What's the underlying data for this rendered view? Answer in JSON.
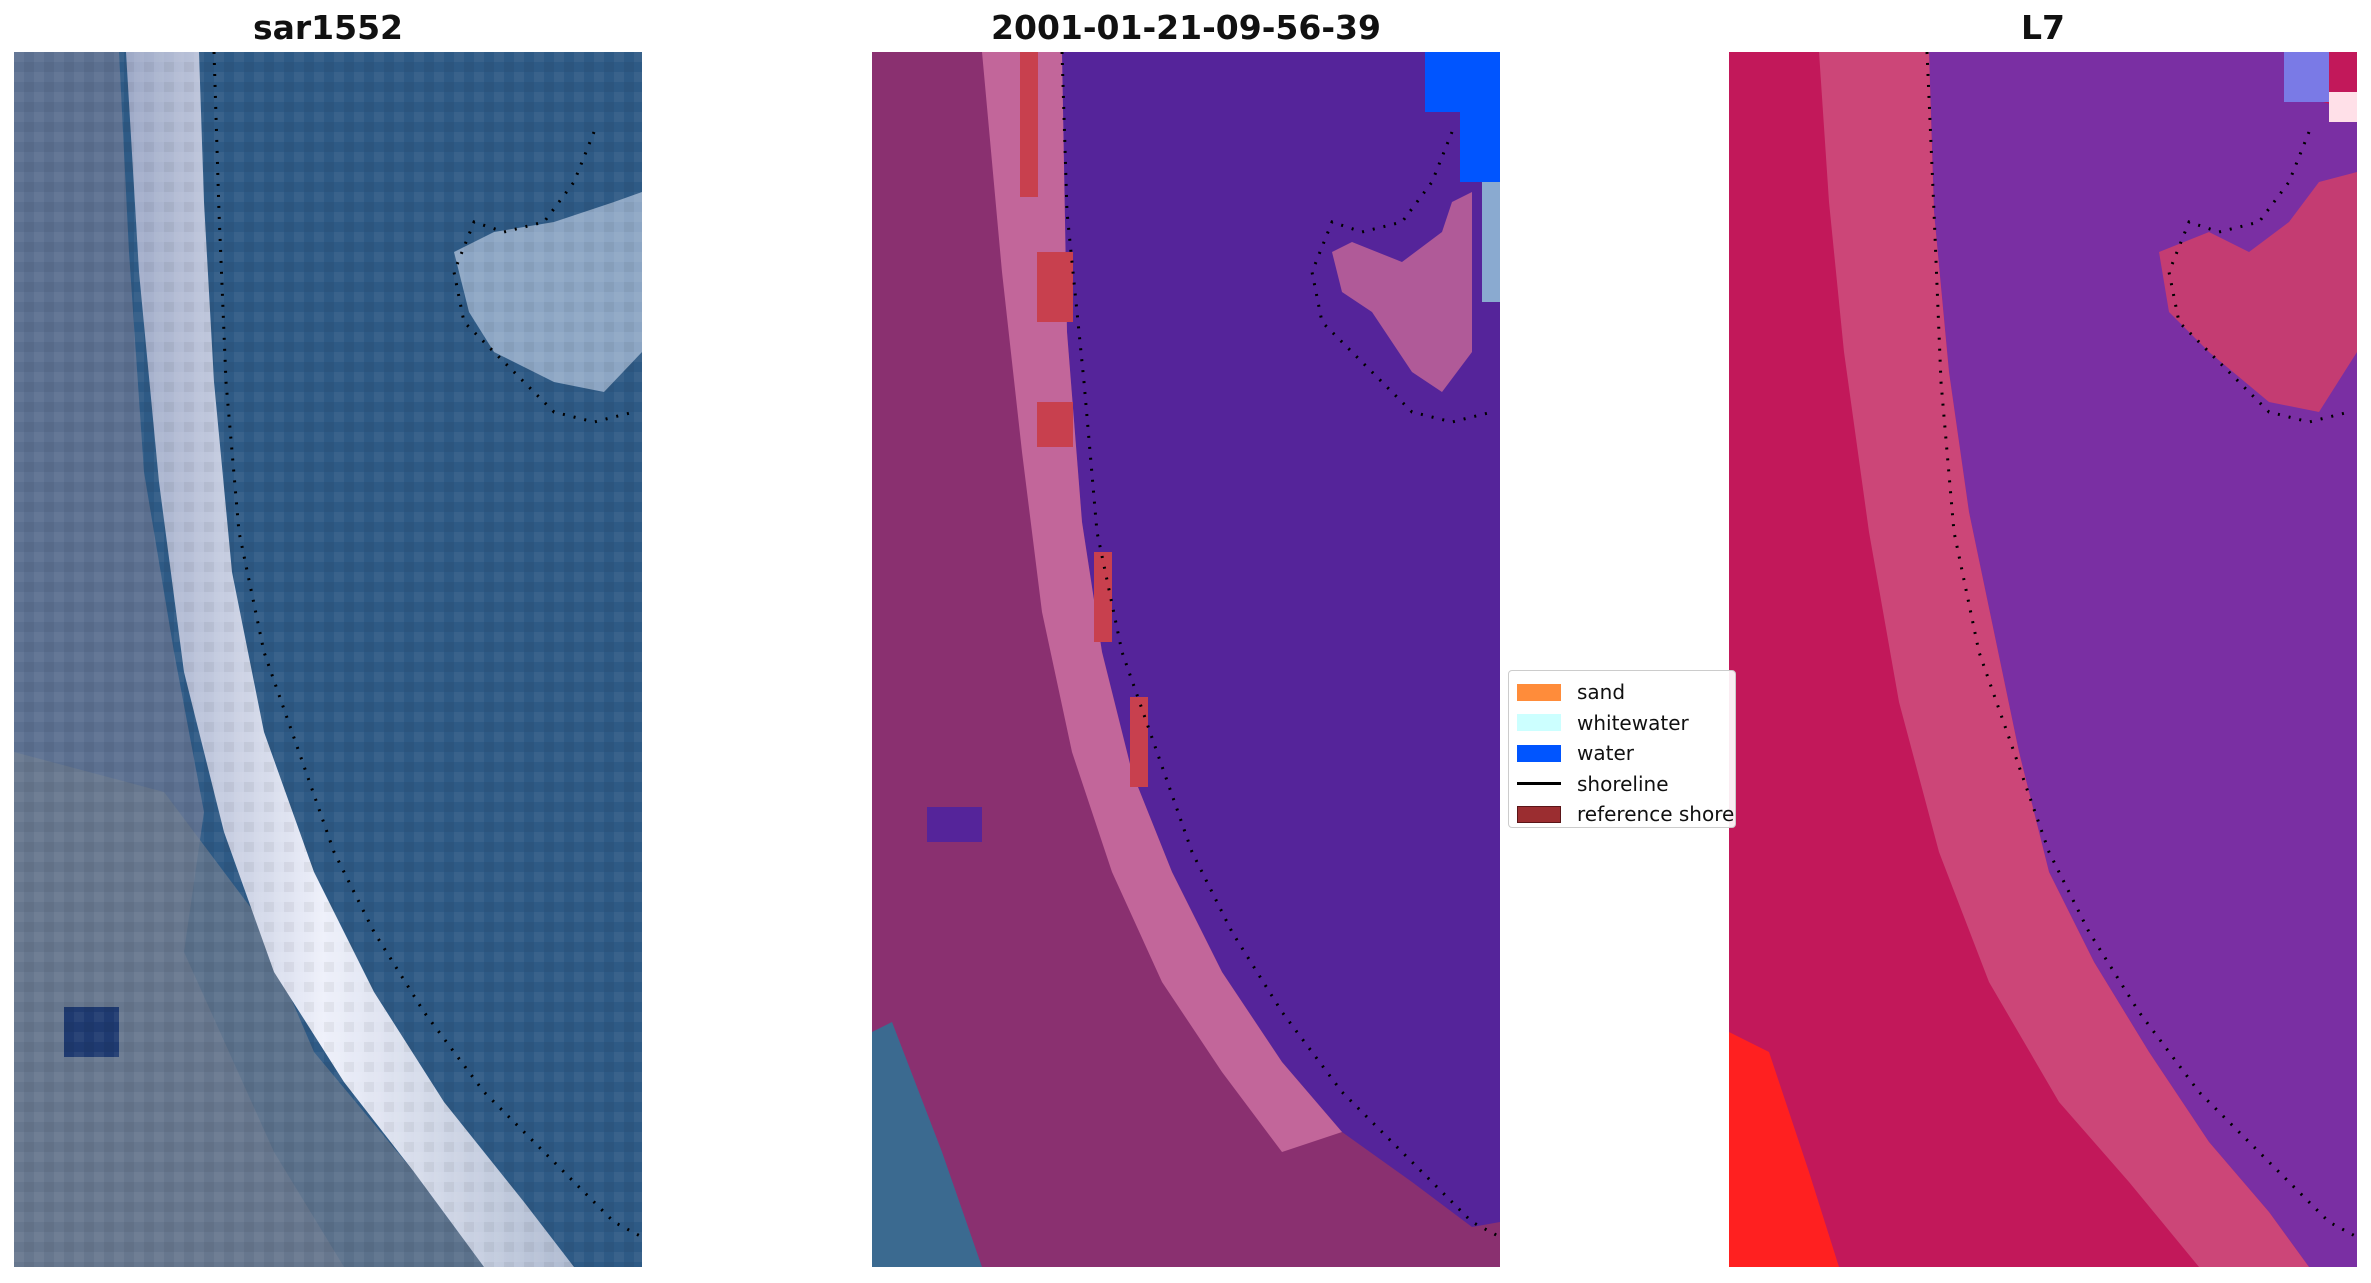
{
  "panels": [
    {
      "title": "sar1552"
    },
    {
      "title": "2001-01-21-09-56-39"
    },
    {
      "title": "L7"
    }
  ],
  "legend": {
    "items": [
      {
        "label": "sand",
        "color": "#ff8c3a",
        "kind": "patch"
      },
      {
        "label": "whitewater",
        "color": "#ccffff",
        "kind": "patch"
      },
      {
        "label": "water",
        "color": "#0055ff",
        "kind": "patch"
      },
      {
        "label": "shoreline",
        "color": "#000000",
        "kind": "line"
      },
      {
        "label": "reference shoreline",
        "color": "#9b2d30",
        "kind": "patch"
      }
    ]
  },
  "colors": {
    "sar_water": "#2e5a85",
    "sar_land": "#5c7090",
    "sar_beach": "#e6e8f5",
    "class_water_mask": "#55249a",
    "class_land": "#8a3070",
    "class_beach": "#c2669a",
    "l7_water": "#7a2fa3",
    "l7_land": "#c2185a",
    "l7_red": "#ff2020"
  }
}
